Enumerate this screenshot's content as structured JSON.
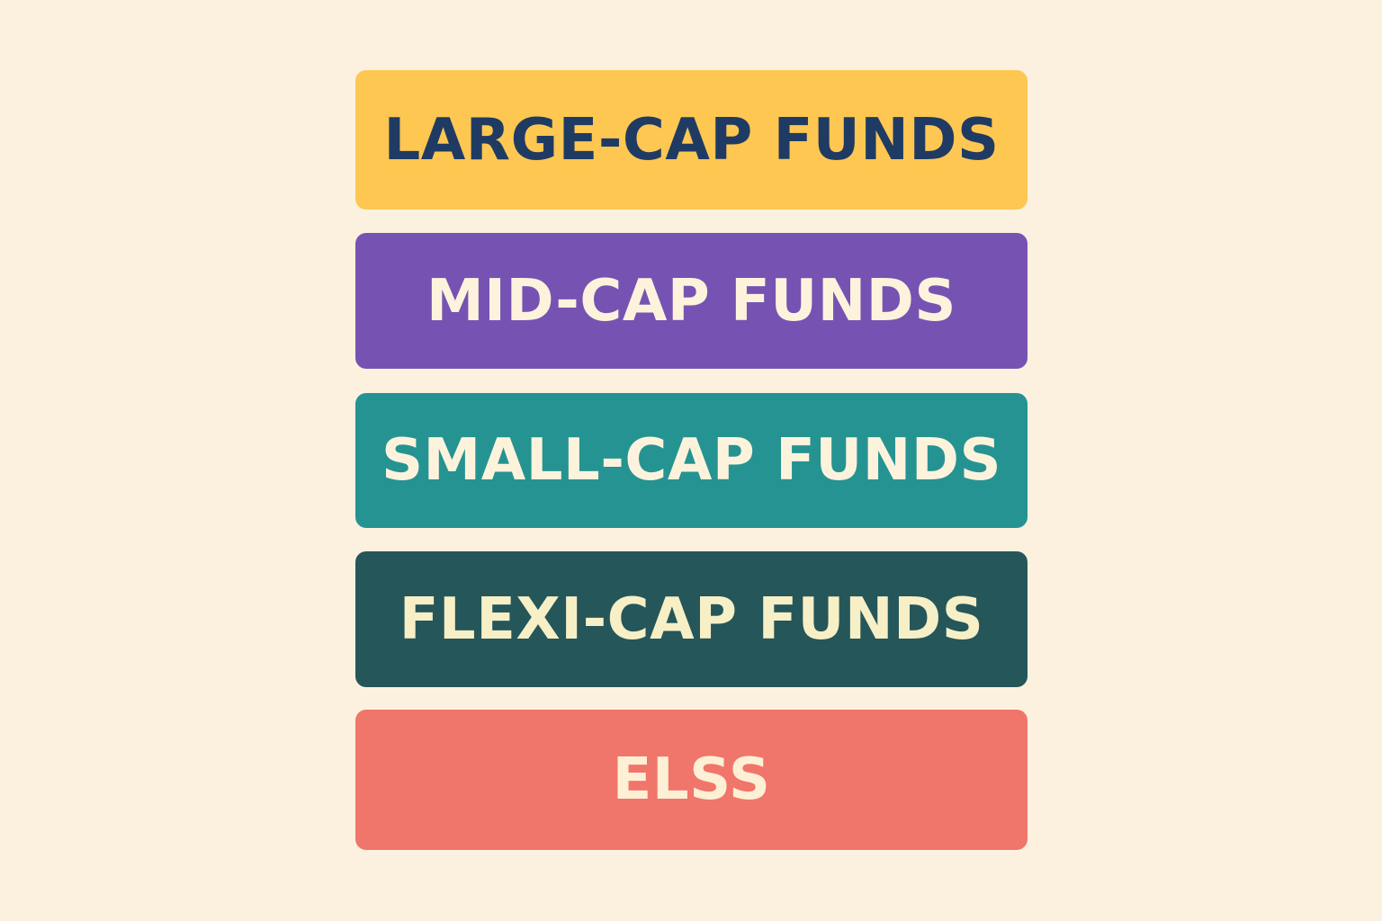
{
  "background_color": "#fcf1df",
  "categories": [
    {
      "label": "LARGE-CAP FUNDS",
      "bg": "#fdc751",
      "fg": "#1f3b63"
    },
    {
      "label": "MID-CAP FUNDS",
      "bg": "#7653b2",
      "fg": "#fdf3dd"
    },
    {
      "label": "SMALL-CAP FUNDS",
      "bg": "#259391",
      "fg": "#fdf3dd"
    },
    {
      "label": "FLEXI-CAP FUNDS",
      "bg": "#25565a",
      "fg": "#f7efc6"
    },
    {
      "label": "ELSS",
      "bg": "#f0756b",
      "fg": "#fdf0d4"
    }
  ]
}
